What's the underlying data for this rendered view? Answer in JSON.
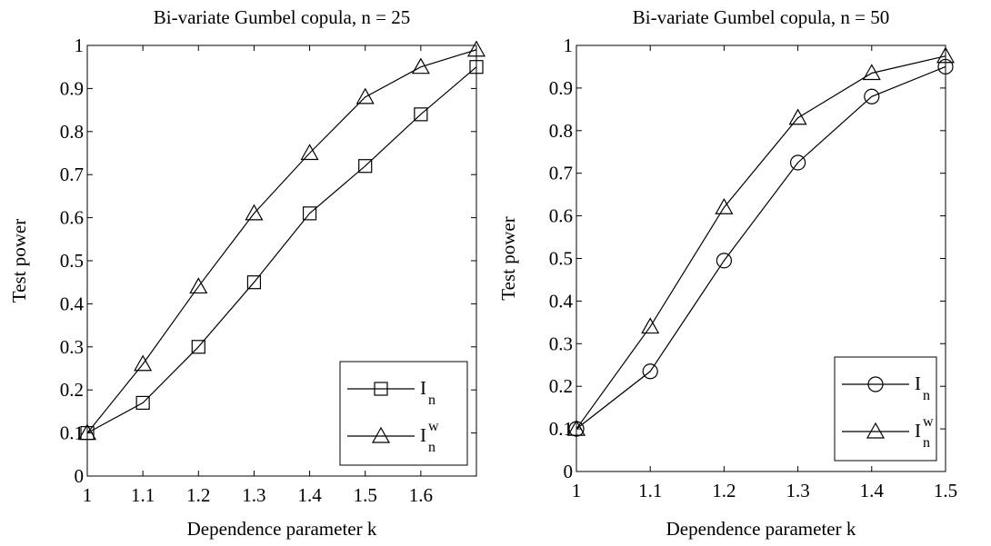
{
  "chart_data": [
    {
      "type": "line",
      "title": "Bi-variate Gumbel copula, n = 25",
      "xlabel": "Dependence parameter k",
      "ylabel": "Test power",
      "x": [
        1,
        1.1,
        1.2,
        1.3,
        1.4,
        1.5,
        1.6,
        1.7
      ],
      "xlim": [
        1,
        1.7
      ],
      "xticks": [
        1,
        1.1,
        1.2,
        1.3,
        1.4,
        1.5,
        1.6
      ],
      "ylim": [
        0,
        1
      ],
      "yticks": [
        0,
        0.1,
        0.2,
        0.3,
        0.4,
        0.5,
        0.6,
        0.7,
        0.8,
        0.9,
        1
      ],
      "legend": "lower right",
      "series": [
        {
          "name": "I",
          "name_sub": "n",
          "color": "#000000",
          "marker": "square",
          "values": [
            0.1,
            0.17,
            0.3,
            0.45,
            0.61,
            0.72,
            0.84,
            0.95
          ]
        },
        {
          "name": "I",
          "name_sub": "n",
          "name_sup": "w",
          "color": "#000000",
          "marker": "triangle",
          "values": [
            0.1,
            0.26,
            0.44,
            0.61,
            0.75,
            0.88,
            0.95,
            0.99
          ]
        }
      ]
    },
    {
      "type": "line",
      "title": "Bi-variate Gumbel copula, n = 50",
      "xlabel": "Dependence parameter k",
      "ylabel": "Test power",
      "x": [
        1,
        1.1,
        1.2,
        1.3,
        1.4,
        1.5
      ],
      "xlim": [
        1,
        1.5
      ],
      "xticks": [
        1,
        1.1,
        1.2,
        1.3,
        1.4,
        1.5
      ],
      "ylim": [
        0,
        1
      ],
      "yticks": [
        0,
        0.1,
        0.2,
        0.3,
        0.4,
        0.5,
        0.6,
        0.7,
        0.8,
        0.9,
        1
      ],
      "legend": "lower right",
      "series": [
        {
          "name": "I",
          "name_sub": "n",
          "color": "#000000",
          "marker": "circle",
          "values": [
            0.1,
            0.235,
            0.495,
            0.725,
            0.88,
            0.95
          ]
        },
        {
          "name": "I",
          "name_sub": "n",
          "name_sup": "w",
          "color": "#000000",
          "marker": "triangle",
          "values": [
            0.1,
            0.34,
            0.62,
            0.83,
            0.935,
            0.975
          ]
        }
      ]
    }
  ]
}
